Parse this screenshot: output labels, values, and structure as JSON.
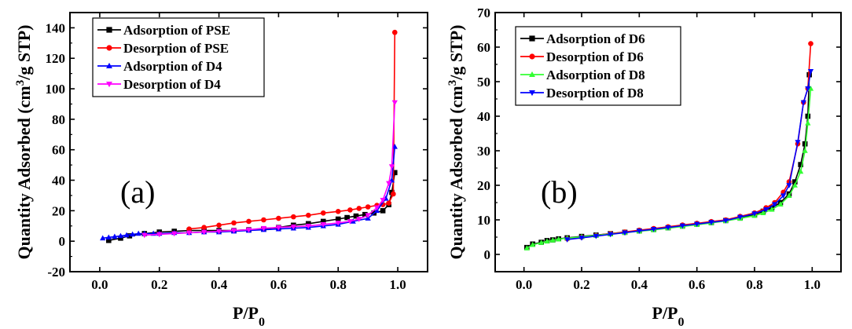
{
  "chart_data": [
    {
      "type": "line",
      "panel_label": "(a)",
      "xlabel_main": "P/P",
      "xlabel_sub": "0",
      "ylabel": "Quantity Adsorbed (cm",
      "ylabel_sup": "3",
      "ylabel_end": "/g STP)",
      "xlim": [
        -0.1,
        1.1
      ],
      "ylim": [
        -20,
        150
      ],
      "xticks": [
        "0.0",
        "0.2",
        "0.4",
        "0.6",
        "0.8",
        "1.0"
      ],
      "xtick_values": [
        0,
        0.2,
        0.4,
        0.6,
        0.8,
        1.0
      ],
      "yticks": [
        "-20",
        "0",
        "20",
        "40",
        "60",
        "80",
        "100",
        "120",
        "140"
      ],
      "ytick_values": [
        -20,
        0,
        20,
        40,
        60,
        80,
        100,
        120,
        140
      ],
      "legend_position": "top-left",
      "series": [
        {
          "name": "Adsorption of PSE",
          "color": "#000000",
          "marker": "square",
          "x": [
            0.03,
            0.07,
            0.1,
            0.15,
            0.2,
            0.25,
            0.3,
            0.35,
            0.4,
            0.45,
            0.5,
            0.55,
            0.6,
            0.65,
            0.7,
            0.75,
            0.8,
            0.83,
            0.86,
            0.89,
            0.92,
            0.95,
            0.97,
            0.98,
            0.99
          ],
          "y": [
            0.5,
            2,
            3.5,
            5,
            6,
            6.5,
            7,
            7,
            7,
            7,
            7.5,
            8,
            9,
            10.5,
            11.5,
            13,
            14.5,
            15.5,
            16.5,
            17.5,
            18.5,
            20,
            24,
            32,
            45
          ]
        },
        {
          "name": "Desorption of PSE",
          "color": "#ff0000",
          "marker": "circle",
          "x": [
            0.99,
            0.985,
            0.97,
            0.95,
            0.93,
            0.9,
            0.87,
            0.84,
            0.8,
            0.75,
            0.7,
            0.65,
            0.6,
            0.55,
            0.5,
            0.45,
            0.4,
            0.35,
            0.3
          ],
          "y": [
            137,
            31,
            25,
            24,
            23.5,
            22.5,
            21.5,
            20.5,
            19.5,
            18.5,
            17,
            16,
            15,
            14,
            13,
            12,
            10.5,
            9,
            8
          ]
        },
        {
          "name": "Adsorption of D4",
          "color": "#0000ff",
          "marker": "triangle-up",
          "x": [
            0.01,
            0.03,
            0.05,
            0.07,
            0.09,
            0.11,
            0.13,
            0.15,
            0.18,
            0.2,
            0.25,
            0.3,
            0.35,
            0.4,
            0.45,
            0.5,
            0.55,
            0.6,
            0.65,
            0.7,
            0.75,
            0.8,
            0.85,
            0.9,
            0.93,
            0.96,
            0.98,
            0.99
          ],
          "y": [
            2,
            2.5,
            3,
            3.5,
            4,
            4.5,
            5,
            5,
            5,
            5,
            5.5,
            5.5,
            6,
            6,
            6.5,
            7,
            7.5,
            8,
            8.5,
            9,
            10,
            11,
            13,
            15,
            20,
            28,
            40,
            62
          ]
        },
        {
          "name": "Desorption of D4",
          "color": "#ff00ff",
          "marker": "triangle-down",
          "x": [
            0.99,
            0.98,
            0.97,
            0.95,
            0.93,
            0.9,
            0.87,
            0.84,
            0.8,
            0.75,
            0.7,
            0.65,
            0.6,
            0.55,
            0.5,
            0.45,
            0.4,
            0.35,
            0.3,
            0.25,
            0.2,
            0.15
          ],
          "y": [
            91,
            49,
            38,
            27,
            22,
            17,
            14.5,
            13,
            12,
            11,
            10,
            9.5,
            9,
            8.5,
            7.5,
            7,
            6.5,
            6,
            5.5,
            5,
            4.5,
            4
          ]
        }
      ]
    },
    {
      "type": "line",
      "panel_label": "(b)",
      "xlabel_main": "P/P",
      "xlabel_sub": "0",
      "ylabel": "Quantity Adsorbed (cm",
      "ylabel_sup": "3",
      "ylabel_end": "/g STP)",
      "xlim": [
        -0.1,
        1.1
      ],
      "ylim": [
        -5,
        70
      ],
      "xticks": [
        "0.0",
        "0.2",
        "0.4",
        "0.6",
        "0.8",
        "1.0"
      ],
      "xtick_values": [
        0,
        0.2,
        0.4,
        0.6,
        0.8,
        1.0
      ],
      "yticks": [
        "0",
        "10",
        "20",
        "30",
        "40",
        "50",
        "60",
        "70"
      ],
      "ytick_values": [
        0,
        10,
        20,
        30,
        40,
        50,
        60,
        70
      ],
      "legend_position": "top-left",
      "series": [
        {
          "name": "Adsorption of D6",
          "color": "#000000",
          "marker": "square",
          "x": [
            0.01,
            0.03,
            0.06,
            0.08,
            0.1,
            0.12,
            0.15,
            0.2,
            0.25,
            0.3,
            0.35,
            0.4,
            0.45,
            0.5,
            0.55,
            0.6,
            0.65,
            0.7,
            0.75,
            0.8,
            0.83,
            0.86,
            0.89,
            0.92,
            0.94,
            0.96,
            0.975,
            0.985,
            0.99
          ],
          "y": [
            2,
            3,
            3.5,
            4,
            4.2,
            4.5,
            4.8,
            5.2,
            5.6,
            6,
            6.4,
            6.8,
            7.2,
            7.7,
            8.2,
            8.7,
            9.2,
            9.8,
            10.5,
            11.5,
            12.5,
            13.5,
            15,
            17.5,
            21,
            26,
            32,
            40,
            52
          ]
        },
        {
          "name": "Desorption of D6",
          "color": "#ff0000",
          "marker": "circle",
          "x": [
            0.995,
            0.985,
            0.97,
            0.95,
            0.92,
            0.9,
            0.87,
            0.84,
            0.8,
            0.75,
            0.7,
            0.65,
            0.6,
            0.55,
            0.5,
            0.45,
            0.4,
            0.35,
            0.3,
            0.25,
            0.2,
            0.15
          ],
          "y": [
            61,
            48,
            44,
            32,
            21,
            18,
            15,
            13.5,
            12,
            11,
            10,
            9.5,
            9,
            8.5,
            8,
            7.5,
            7,
            6.5,
            6,
            5.5,
            5,
            4.5
          ]
        },
        {
          "name": "Adsorption of D8",
          "color": "#33ff33",
          "marker": "triangle-up",
          "x": [
            0.01,
            0.03,
            0.06,
            0.08,
            0.1,
            0.12,
            0.15,
            0.2,
            0.25,
            0.3,
            0.35,
            0.4,
            0.45,
            0.5,
            0.55,
            0.6,
            0.65,
            0.7,
            0.75,
            0.8,
            0.83,
            0.86,
            0.89,
            0.92,
            0.94,
            0.96,
            0.975,
            0.985,
            0.995
          ],
          "y": [
            1.8,
            2.8,
            3.4,
            3.8,
            4.1,
            4.4,
            4.7,
            5.1,
            5.5,
            5.9,
            6.3,
            6.7,
            7.1,
            7.6,
            8.1,
            8.6,
            9.1,
            9.7,
            10.4,
            11.2,
            12,
            13,
            14.5,
            17,
            20,
            24,
            30,
            38,
            48
          ]
        },
        {
          "name": "Desorption of D8",
          "color": "#0000ff",
          "marker": "triangle-down",
          "x": [
            0.995,
            0.985,
            0.97,
            0.95,
            0.92,
            0.9,
            0.87,
            0.84,
            0.8,
            0.75,
            0.7,
            0.65,
            0.6,
            0.55,
            0.5,
            0.45,
            0.4,
            0.35,
            0.3,
            0.25,
            0.2,
            0.15
          ],
          "y": [
            53,
            48,
            44,
            32.5,
            20,
            17,
            14.5,
            13,
            11.8,
            10.8,
            9.8,
            9.3,
            8.8,
            8.3,
            7.8,
            7.3,
            6.8,
            6.3,
            5.8,
            5.3,
            4.8,
            4.3
          ]
        }
      ]
    }
  ]
}
